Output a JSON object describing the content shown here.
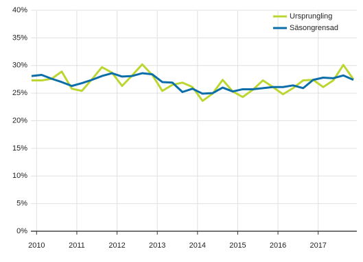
{
  "chart_data": {
    "type": "line",
    "categories": [
      null,
      "2010",
      null,
      null,
      null,
      "2011",
      null,
      null,
      null,
      "2012",
      null,
      null,
      null,
      "2013",
      null,
      null,
      null,
      "2014",
      null,
      null,
      null,
      "2015",
      null,
      null,
      null,
      "2016",
      null,
      null,
      null,
      "2017",
      null,
      null,
      null
    ],
    "series": [
      {
        "name": "Ursprungling",
        "color": "#bcd631",
        "values": [
          27.3,
          27.3,
          27.6,
          28.9,
          25.8,
          25.4,
          27.5,
          29.7,
          28.7,
          26.3,
          28.2,
          30.2,
          28.3,
          25.4,
          26.5,
          26.9,
          26.1,
          23.6,
          24.9,
          27.4,
          25.3,
          24.3,
          25.6,
          27.3,
          26.1,
          24.8,
          25.9,
          27.3,
          27.4,
          26.1,
          27.3,
          30.1,
          27.5
        ]
      },
      {
        "name": "Säsongrensad",
        "color": "#0b6ea8",
        "values": [
          28.1,
          28.3,
          27.6,
          27.0,
          26.3,
          26.8,
          27.4,
          28.1,
          28.6,
          28.0,
          28.1,
          28.6,
          28.4,
          27.0,
          26.9,
          25.2,
          25.8,
          24.9,
          25.0,
          26.0,
          25.3,
          25.7,
          25.7,
          25.9,
          26.1,
          26.1,
          26.4,
          25.9,
          27.4,
          27.8,
          27.7,
          28.2,
          27.4
        ]
      }
    ],
    "ylim": [
      0,
      40
    ],
    "yticks": [
      {
        "value": 0,
        "label": "0%"
      },
      {
        "value": 5,
        "label": "5%"
      },
      {
        "value": 10,
        "label": "10%"
      },
      {
        "value": 15,
        "label": "15%"
      },
      {
        "value": 20,
        "label": "20%"
      },
      {
        "value": 25,
        "label": "25%"
      },
      {
        "value": 30,
        "label": "30%"
      },
      {
        "value": 35,
        "label": "35%"
      },
      {
        "value": 40,
        "label": "40%"
      }
    ],
    "grid": true,
    "legend": "top-right"
  }
}
